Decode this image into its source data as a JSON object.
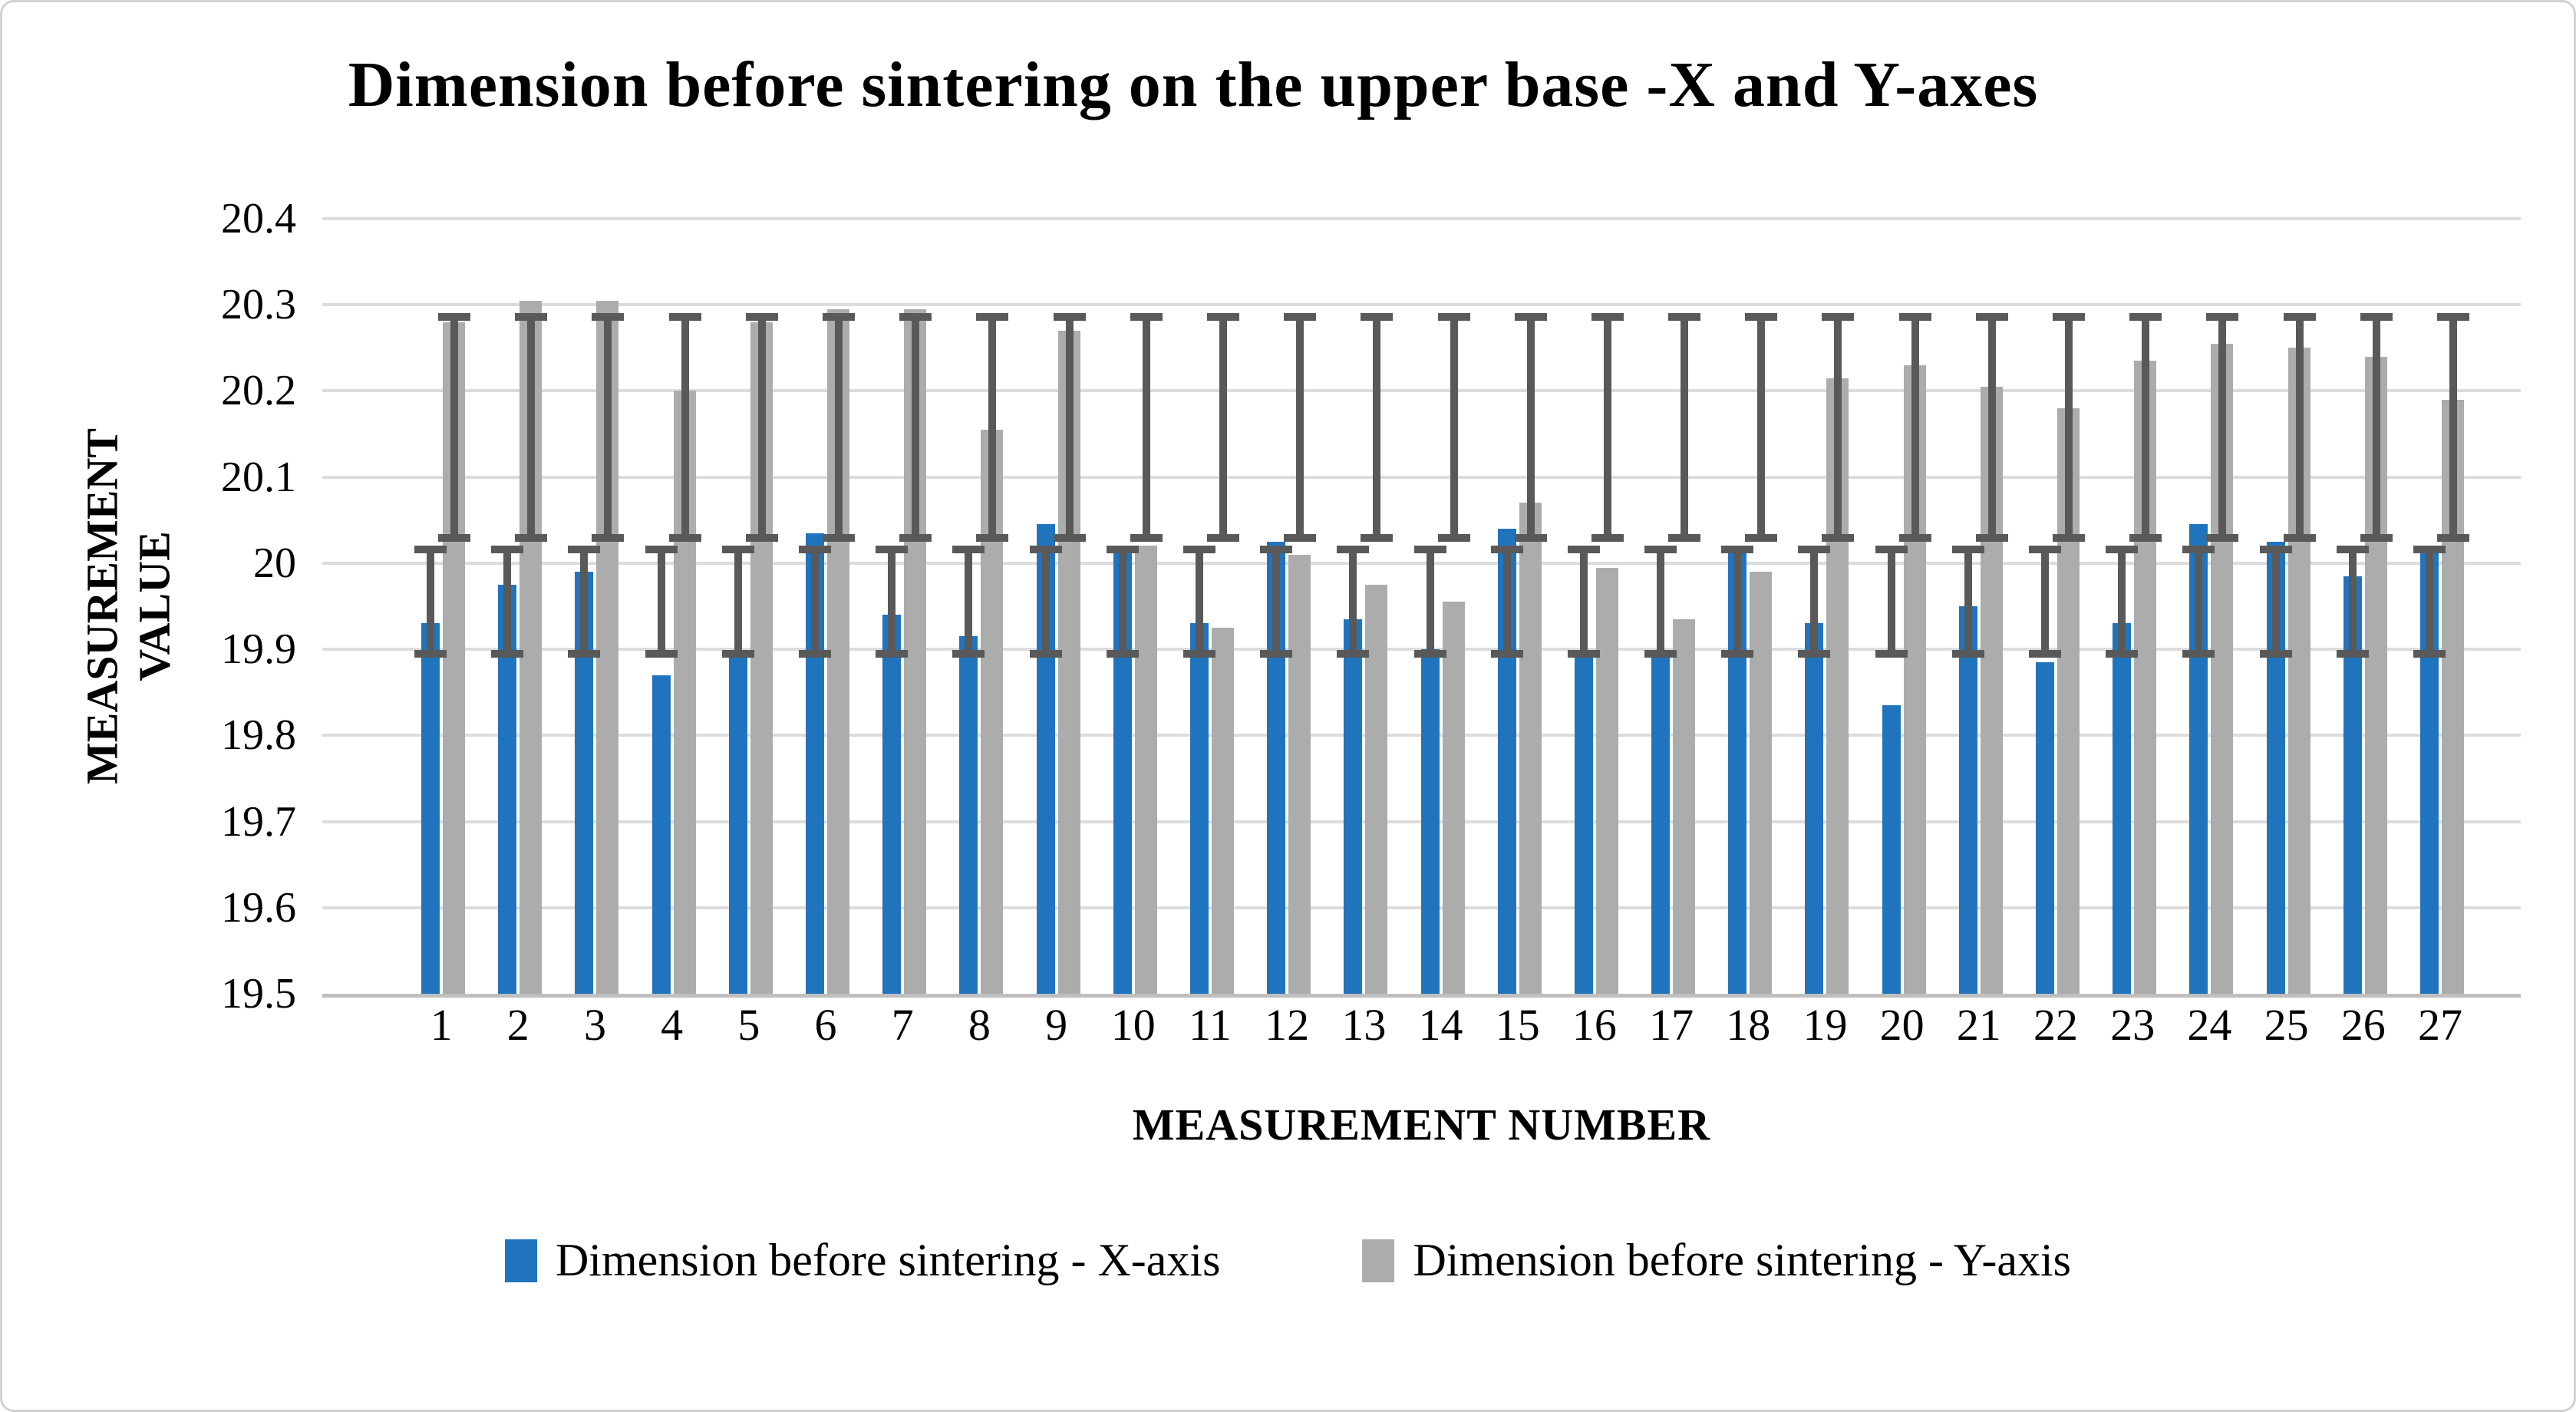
{
  "title": "Dimension before sintering on the upper base -X and Y-axes",
  "y_axis": {
    "title": "MEASUREMENT VALUE",
    "title_line1": "MEASUREMENT",
    "title_line2": "VALUE"
  },
  "x_axis": {
    "title": "MEASUREMENT NUMBER"
  },
  "legend": {
    "items": [
      {
        "label": "Dimension before sintering - X-axis",
        "color": "#2074BE"
      },
      {
        "label": "Dimension before sintering - Y-axis",
        "color": "#ACACAC"
      }
    ]
  },
  "colors": {
    "blue_series": "#2074BE",
    "gray_series": "#ACACAC",
    "error_bar": "#595959",
    "gridline": "#DCDCDC",
    "axis_line": "#BFBFBF"
  },
  "chart_data": {
    "type": "bar",
    "title": "Dimension before sintering on the upper base -X and Y-axes",
    "xlabel": "MEASUREMENT NUMBER",
    "ylabel": "MEASUREMENT VALUE",
    "ylim": [
      19.5,
      20.4
    ],
    "grid": true,
    "legend_position": "bottom",
    "yticks": [
      20.4,
      20.3,
      20.2,
      20.1,
      20.0,
      19.9,
      19.8,
      19.7,
      19.6,
      19.5
    ],
    "ytick_labels": [
      "20.4",
      "20.3",
      "20.2",
      "20.1",
      "20",
      "19.9",
      "19.8",
      "19.7",
      "19.6",
      "19.5"
    ],
    "categories": [
      "1",
      "2",
      "3",
      "4",
      "5",
      "6",
      "7",
      "8",
      "9",
      "10",
      "11",
      "12",
      "13",
      "14",
      "15",
      "16",
      "17",
      "18",
      "19",
      "20",
      "21",
      "22",
      "23",
      "24",
      "25",
      "26",
      "27"
    ],
    "series": [
      {
        "name": "Dimension before sintering - X-axis",
        "color": "#2074BE",
        "error_bar": {
          "low": 19.89,
          "high": 20.02
        },
        "values": [
          19.93,
          19.975,
          19.99,
          19.87,
          19.89,
          20.035,
          19.94,
          19.915,
          20.045,
          20.015,
          19.93,
          20.025,
          19.935,
          19.9,
          20.04,
          19.895,
          19.895,
          20.015,
          19.93,
          19.835,
          19.95,
          19.885,
          19.93,
          20.045,
          20.025,
          19.985,
          20.015
        ]
      },
      {
        "name": "Dimension before sintering - Y-axis",
        "color": "#ACACAC",
        "error_bar": {
          "low": 20.025,
          "high": 20.29
        },
        "values": [
          20.28,
          20.305,
          20.305,
          20.2,
          20.28,
          20.295,
          20.295,
          20.155,
          20.27,
          20.02,
          19.925,
          20.01,
          19.975,
          19.955,
          20.07,
          19.995,
          19.935,
          19.99,
          20.215,
          20.23,
          20.205,
          20.18,
          20.235,
          20.255,
          20.25,
          20.24,
          20.19
        ]
      }
    ]
  }
}
